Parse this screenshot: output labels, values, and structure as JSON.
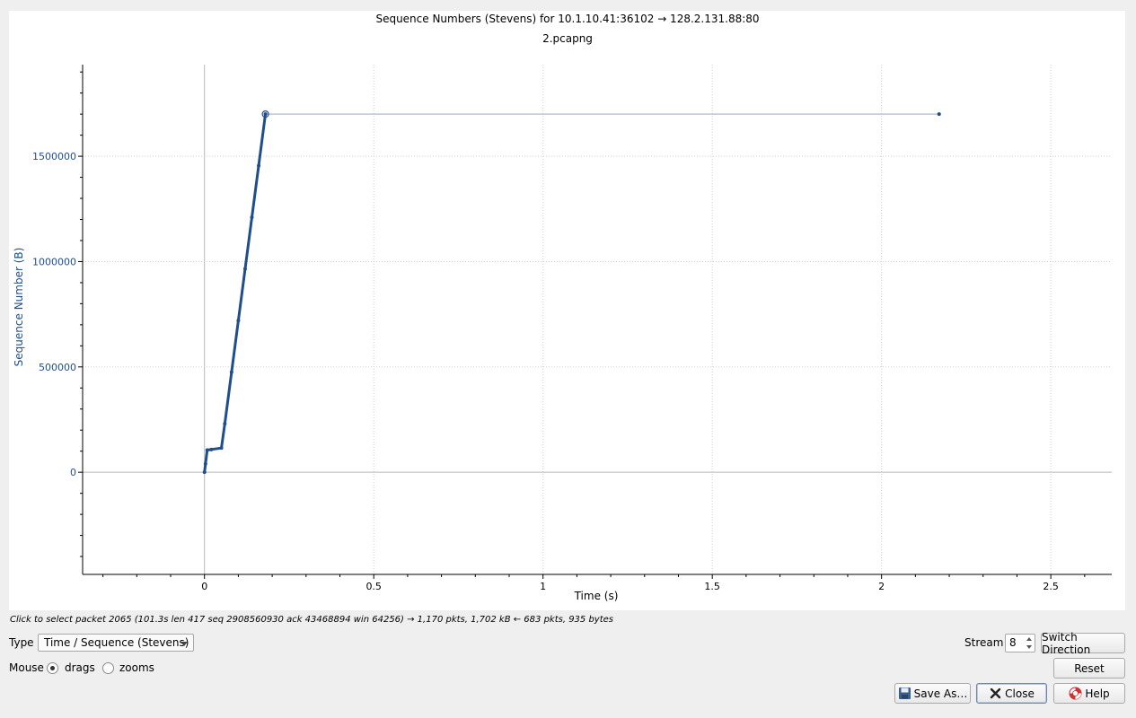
{
  "plot": {
    "title": "Sequence Numbers (Stevens) for 10.1.10.41:36102 → 128.2.131.88:80",
    "subtitle": "2.pcapng",
    "xlabel": "Time (s)",
    "ylabel": "Sequence Number (B)",
    "series_color": "#1f4e8c"
  },
  "chart_data": {
    "type": "scatter",
    "title": "Sequence Numbers (Stevens) for 10.1.10.41:36102 → 128.2.131.88:80",
    "subtitle": "2.pcapng",
    "xlabel": "Time (s)",
    "ylabel": "Sequence Number (B)",
    "xlim": [
      -0.36,
      2.68
    ],
    "ylim": [
      -485000,
      1935000
    ],
    "x_ticks": [
      0,
      0.5,
      1,
      1.5,
      2,
      2.5
    ],
    "x_tick_labels": [
      "0",
      "0.5",
      "1",
      "1.5",
      "2",
      "2.5"
    ],
    "y_ticks": [
      0,
      500000,
      1000000,
      1500000
    ],
    "y_tick_labels": [
      "0",
      "500000",
      "1000000",
      "1500000"
    ],
    "grid": true,
    "series": [
      {
        "x": [
          0.0,
          0.003,
          0.008,
          0.02,
          0.05,
          0.06,
          0.08,
          0.1,
          0.12,
          0.14,
          0.16,
          0.18,
          2.17
        ],
        "y": [
          0,
          40000,
          105000,
          108000,
          115000,
          230000,
          475000,
          720000,
          965000,
          1210000,
          1455000,
          1700000,
          1700000
        ]
      }
    ],
    "selected_point": {
      "x": 0.18,
      "y": 1700000
    }
  },
  "status": {
    "hint": "Click to select packet 2065 (101.3s len 417 seq 2908560930 ack 43468894 win 64256) → 1,170 pkts, 1,702 kB ← 683 pkts, 935 bytes"
  },
  "controls": {
    "type_label": "Type",
    "type_value": "Time / Sequence (Stevens)",
    "mouse_label": "Mouse",
    "drags_label": "drags",
    "zooms_label": "zooms",
    "mouse_mode": "drags",
    "stream_label": "Stream",
    "stream_value": "8",
    "switch_direction": "Switch Direction",
    "reset": "Reset",
    "save_as": "Save As…",
    "close": "Close",
    "help": "Help"
  }
}
